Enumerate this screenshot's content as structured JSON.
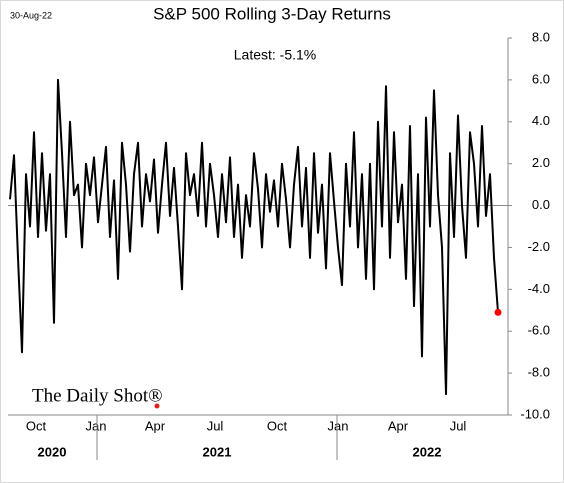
{
  "chart_data": {
    "type": "line",
    "date_stamp": "30-Aug-22",
    "title": "S&P 500 Rolling 3-Day Returns",
    "annotation": "Latest:  -5.1%",
    "logo": "The Daily Shot®",
    "series": [
      {
        "color": "#000000",
        "values": [
          0.3,
          2.4,
          -2.5,
          -7.0,
          1.5,
          -1.0,
          3.5,
          -1.5,
          2.5,
          -1.2,
          1.5,
          -5.6,
          6.0,
          2.5,
          -1.5,
          4.0,
          0.5,
          1.0,
          -2.0,
          2.0,
          0.5,
          2.3,
          -0.8,
          1.0,
          2.8,
          -1.5,
          1.2,
          -3.5,
          3.0,
          1.0,
          -2.2,
          1.5,
          3.0,
          -1.0,
          1.5,
          0.2,
          2.2,
          -1.3,
          1.0,
          3.0,
          -0.5,
          1.8,
          -1.0,
          -4.0,
          2.5,
          0.5,
          1.5,
          -0.5,
          3.0,
          -1.0,
          2.0,
          0.5,
          -1.5,
          1.5,
          -0.8,
          2.3,
          -1.5,
          1.0,
          -2.5,
          0.5,
          -1.0,
          2.5,
          0.8,
          -2.0,
          1.5,
          -0.3,
          1.2,
          -1.0,
          2.0,
          0.3,
          -2.0,
          1.0,
          2.8,
          -1.0,
          1.8,
          -2.5,
          2.5,
          -1.3,
          1.0,
          -3.0,
          2.5,
          0.2,
          -2.0,
          -3.8,
          2.0,
          -1.0,
          3.5,
          -2.0,
          1.5,
          -3.5,
          2.0,
          -4.0,
          4.0,
          -1.0,
          5.7,
          -2.5,
          3.5,
          -0.8,
          1.0,
          -3.5,
          3.8,
          -4.8,
          1.5,
          -7.2,
          4.2,
          -1.0,
          5.5,
          0.5,
          -2.0,
          -9.0,
          2.5,
          -1.5,
          4.3,
          0.0,
          -2.5,
          3.5,
          2.0,
          -1.0,
          3.8,
          -0.5,
          1.5,
          -2.5,
          -5.1
        ]
      }
    ],
    "last_point_color": "#ff0000",
    "xlim": [
      0,
      122
    ],
    "xticks": [
      {
        "value": 6.5,
        "label": "Oct"
      },
      {
        "value": 21.5,
        "label": "Jan"
      },
      {
        "value": 36.25,
        "label": "Apr"
      },
      {
        "value": 51.25,
        "label": "Jul"
      },
      {
        "value": 66.75,
        "label": "Oct"
      },
      {
        "value": 82,
        "label": "Jan"
      },
      {
        "value": 97,
        "label": "Apr"
      },
      {
        "value": 112,
        "label": "Jul"
      }
    ],
    "year_labels": [
      {
        "value": 10.5,
        "label": "2020"
      },
      {
        "value": 51.75,
        "label": "2021"
      },
      {
        "value": 104.25,
        "label": "2022"
      }
    ],
    "year_boundaries": [
      21.75,
      81.75
    ],
    "ylim": [
      -10,
      8
    ],
    "yticks": [
      {
        "value": -10,
        "label": "-10.0"
      },
      {
        "value": -8,
        "label": "-8.0"
      },
      {
        "value": -6,
        "label": "-6.0"
      },
      {
        "value": -4,
        "label": "-4.0"
      },
      {
        "value": -2,
        "label": "-2.0"
      },
      {
        "value": 0,
        "label": "0.0"
      },
      {
        "value": 2,
        "label": "2.0"
      },
      {
        "value": 4,
        "label": "4.0"
      },
      {
        "value": 6,
        "label": "6.0"
      },
      {
        "value": 8,
        "label": "8.0"
      }
    ]
  }
}
